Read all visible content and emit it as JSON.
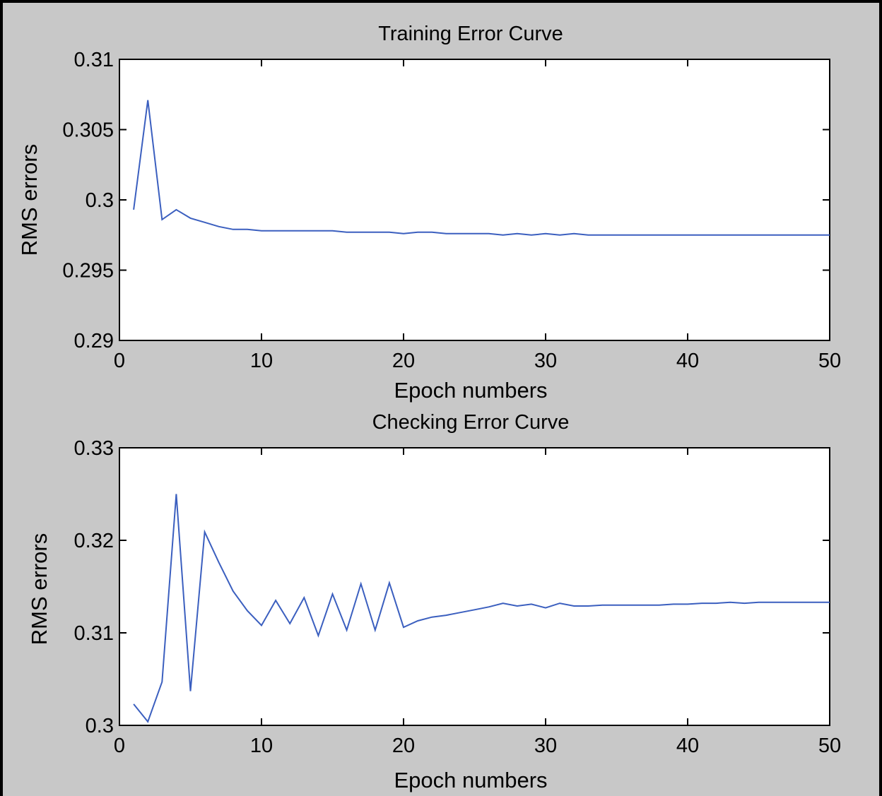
{
  "chart_data": [
    {
      "type": "line",
      "title": "Training Error Curve",
      "xlabel": "Epoch numbers",
      "ylabel": "RMS errors",
      "xlim": [
        0,
        50
      ],
      "ylim": [
        0.29,
        0.31
      ],
      "grid": false,
      "xticks": [
        "0",
        "10",
        "20",
        "30",
        "40",
        "50"
      ],
      "yticks": [
        "0.29",
        "0.295",
        "0.3",
        "0.305",
        "0.31"
      ],
      "color": "#3b5fbf",
      "series": [
        {
          "x": [
            1,
            2,
            3,
            4,
            5,
            6,
            7,
            8,
            9,
            10,
            11,
            12,
            13,
            14,
            15,
            16,
            17,
            18,
            19,
            20,
            21,
            22,
            23,
            24,
            25,
            26,
            27,
            28,
            29,
            30,
            31,
            32,
            33,
            34,
            35,
            36,
            37,
            38,
            39,
            40,
            41,
            42,
            43,
            44,
            45,
            46,
            47,
            48,
            49,
            50
          ],
          "values": [
            0.2993,
            0.3071,
            0.2986,
            0.2993,
            0.2987,
            0.2984,
            0.2981,
            0.2979,
            0.2979,
            0.2978,
            0.2978,
            0.2978,
            0.2978,
            0.2978,
            0.2978,
            0.2977,
            0.2977,
            0.2977,
            0.2977,
            0.2976,
            0.2977,
            0.2977,
            0.2976,
            0.2976,
            0.2976,
            0.2976,
            0.2975,
            0.2976,
            0.2975,
            0.2976,
            0.2975,
            0.2976,
            0.2975,
            0.2975,
            0.2975,
            0.2975,
            0.2975,
            0.2975,
            0.2975,
            0.2975,
            0.2975,
            0.2975,
            0.2975,
            0.2975,
            0.2975,
            0.2975,
            0.2975,
            0.2975,
            0.2975,
            0.2975
          ]
        }
      ]
    },
    {
      "type": "line",
      "title": "Checking Error Curve",
      "xlabel": "Epoch numbers",
      "ylabel": "RMS errors",
      "xlim": [
        0,
        50
      ],
      "ylim": [
        0.3,
        0.33
      ],
      "grid": false,
      "xticks": [
        "0",
        "10",
        "20",
        "30",
        "40",
        "50"
      ],
      "yticks": [
        "0.3",
        "0.31",
        "0.32",
        "0.33"
      ],
      "color": "#3b5fbf",
      "series": [
        {
          "x": [
            1,
            2,
            3,
            4,
            5,
            6,
            7,
            8,
            9,
            10,
            11,
            12,
            13,
            14,
            15,
            16,
            17,
            18,
            19,
            20,
            21,
            22,
            23,
            24,
            25,
            26,
            27,
            28,
            29,
            30,
            31,
            32,
            33,
            34,
            35,
            36,
            37,
            38,
            39,
            40,
            41,
            42,
            43,
            44,
            45,
            46,
            47,
            48,
            49,
            50
          ],
          "values": [
            0.3023,
            0.3004,
            0.3047,
            0.325,
            0.3037,
            0.3209,
            0.3176,
            0.3145,
            0.3124,
            0.3108,
            0.3135,
            0.311,
            0.3138,
            0.3097,
            0.3142,
            0.3103,
            0.3153,
            0.3103,
            0.3154,
            0.3106,
            0.3113,
            0.3117,
            0.3119,
            0.3122,
            0.3125,
            0.3128,
            0.3132,
            0.3129,
            0.3131,
            0.3127,
            0.3132,
            0.3129,
            0.3129,
            0.313,
            0.313,
            0.313,
            0.313,
            0.313,
            0.3131,
            0.3131,
            0.3132,
            0.3132,
            0.3133,
            0.3132,
            0.3133,
            0.3133,
            0.3133,
            0.3133,
            0.3133,
            0.3133
          ]
        }
      ]
    }
  ]
}
